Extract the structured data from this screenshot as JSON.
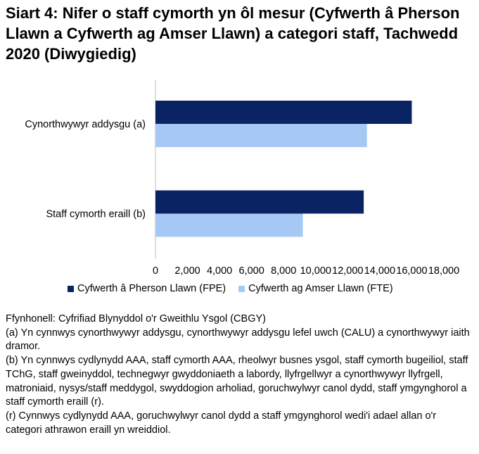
{
  "title": "Siart 4: Nifer o staff cymorth yn ôl mesur (Cyfwerth â Pherson Llawn a Cyfwerth ag Amser Llawn) a categori staff, Tachwedd 2020 (Diwygiedig)",
  "chart_data": {
    "type": "bar",
    "orientation": "horizontal",
    "title": "Siart 4: Nifer o staff cymorth yn ôl mesur (Cyfwerth â Pherson Llawn a Cyfwerth ag Amser Llawn) a categori staff, Tachwedd 2020 (Diwygiedig)",
    "categories": [
      "Cynorthwywyr addysgu (a)",
      "Staff cymorth eraill (b)"
    ],
    "series": [
      {
        "name": "Cyfwerth â Pherson Llawn (FPE)",
        "color": "#0a2463",
        "values": [
          16000,
          13000
        ]
      },
      {
        "name": "Cyfwerth ag Amser Llawn (FTE)",
        "color": "#a6c8f5",
        "values": [
          13200,
          9200
        ]
      }
    ],
    "xlim": [
      0,
      18000
    ],
    "xticks": [
      "0",
      "2,000",
      "4,000",
      "6,000",
      "8,000",
      "10,000",
      "12,000",
      "14,000",
      "16,000",
      "18,000"
    ],
    "xlabel": "",
    "ylabel": "",
    "grid": false,
    "legend_position": "bottom"
  },
  "notes": [
    "Ffynhonell: Cyfrifiad Blynyddol o'r Gweithlu Ysgol (CBGY)",
    "(a) Yn cynnwys cynorthwywyr addysgu, cynorthwywyr addysgu lefel uwch (CALU) a cynorthwywyr iaith dramor.",
    "(b) Yn cynnwys cydlynydd AAA, staff cymorth AAA, rheolwyr busnes ysgol, staff cymorth bugeiliol, staff TChG, staff gweinyddol, technegwyr gwyddoniaeth a labordy, llyfrgellwyr a cynorthwywyr llyfrgell, matroniaid, nysys/staff meddygol, swyddogion arholiad, goruchwylwyr canol dydd, staff ymgynghorol a staff cymorth eraill (r).",
    "(r) Cynnwys cydlynydd AAA, goruchwylwyr canol dydd a staff ymgynghorol wedi'i adael allan o'r categori athrawon eraill yn wreiddiol."
  ]
}
